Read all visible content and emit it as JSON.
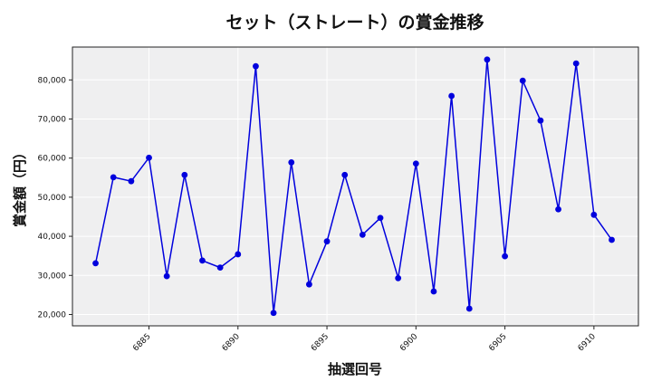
{
  "chart_data": {
    "type": "line",
    "title": "セット（ストレート）の賞金推移",
    "xlabel": "抽選回号",
    "ylabel": "賞金額（円）",
    "x": [
      6882,
      6883,
      6884,
      6885,
      6886,
      6887,
      6888,
      6889,
      6890,
      6891,
      6892,
      6893,
      6894,
      6895,
      6896,
      6897,
      6898,
      6899,
      6900,
      6901,
      6902,
      6903,
      6904,
      6905,
      6906,
      6907,
      6908,
      6909,
      6910,
      6911
    ],
    "series": [
      {
        "name": "賞金額",
        "color": "#0000dd",
        "marker": "circle",
        "values": [
          33100,
          55100,
          54100,
          60100,
          29800,
          55700,
          33800,
          32000,
          35400,
          83500,
          20400,
          58900,
          27700,
          38700,
          55700,
          40400,
          44700,
          29300,
          58600,
          25900,
          75900,
          21500,
          85200,
          34900,
          79800,
          69600,
          46900,
          84200,
          45500,
          39100
        ]
      }
    ],
    "xticks": [
      6885,
      6890,
      6895,
      6900,
      6905,
      6910
    ],
    "xtick_labels": [
      "6885",
      "6890",
      "6895",
      "6900",
      "6905",
      "6910"
    ],
    "yticks": [
      20000,
      30000,
      40000,
      50000,
      60000,
      70000,
      80000
    ],
    "ytick_labels": [
      "20,000",
      "30,000",
      "40,000",
      "50,000",
      "60,000",
      "70,000",
      "80,000"
    ],
    "xlim": [
      6880.7,
      6912.5
    ],
    "ylim": [
      17100,
      88400
    ],
    "grid": true,
    "legend": null,
    "background": "#efeff0",
    "grid_color": "#ffffff"
  }
}
